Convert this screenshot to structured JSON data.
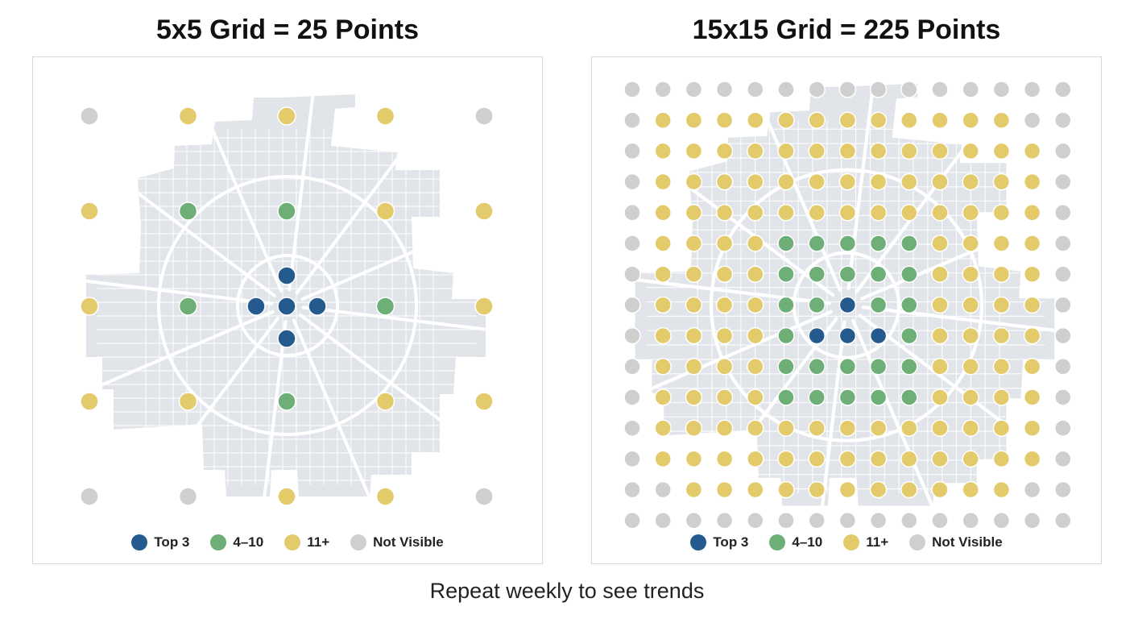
{
  "panels": [
    {
      "title": "5x5 Grid = 25 Points",
      "grid_size": 5,
      "ranks": [
        [
          "gray",
          "yellow",
          "yellow",
          "yellow",
          "gray"
        ],
        [
          "yellow",
          "green",
          "green",
          "yellow",
          "yellow"
        ],
        [
          "yellow",
          "green",
          "blue",
          "green",
          "yellow"
        ],
        [
          "yellow",
          "yellow",
          "green",
          "yellow",
          "yellow"
        ],
        [
          "gray",
          "gray",
          "yellow",
          "yellow",
          "gray"
        ]
      ],
      "extra_points": [
        "top3"
      ]
    },
    {
      "title": "15x15 Grid = 225 Points",
      "grid_size": 15
    }
  ],
  "legend": [
    {
      "key": "blue",
      "label": "Top 3",
      "color": "#255a8e"
    },
    {
      "key": "green",
      "label": "4–10",
      "color": "#6daf76"
    },
    {
      "key": "yellow",
      "label": "11+",
      "color": "#e3cb6b"
    },
    {
      "key": "gray",
      "label": "Not Visible",
      "color": "#cfcfcf"
    }
  ],
  "map_colors": {
    "land": "#e1e4e9",
    "road": "#ffffff"
  },
  "caption": "Repeat weekly to see trends"
}
